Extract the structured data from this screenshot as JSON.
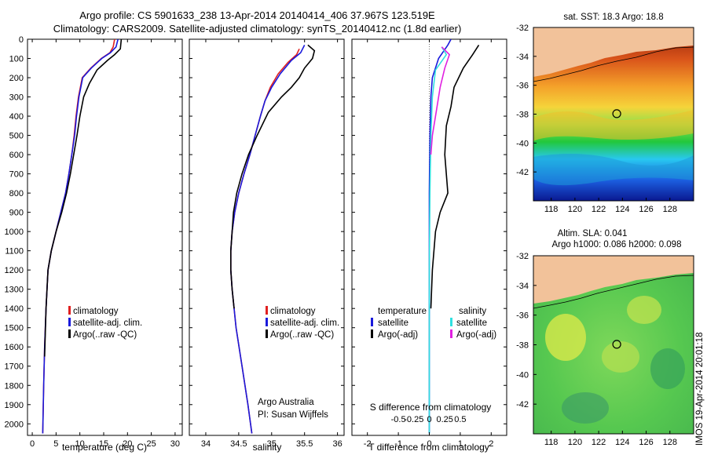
{
  "header": {
    "line1": "Argo profile: CS 5901633_238 13-Apr-2014 20140414_406 37.967S 123.519E",
    "line2": "Climatology: CARS2009. Satellite-adjusted climatology: synTS_20140412.nc (1.8d earlier)"
  },
  "colors": {
    "climatology": "#e02020",
    "satellite": "#1a1adc",
    "argo": "#000000",
    "sal_sat": "#30e0e0",
    "sal_argo": "#e020e0",
    "land": "#f2c29a"
  },
  "chart_data": [
    {
      "type": "line",
      "name": "temperature-profile",
      "xlabel": "temperature (deg C)",
      "ylabel": "",
      "xlim": [
        -1,
        31.5
      ],
      "ylim": [
        2060,
        0
      ],
      "xticks": [
        0,
        5,
        10,
        15,
        20,
        25,
        30
      ],
      "yticks": [
        0,
        100,
        200,
        300,
        400,
        500,
        600,
        700,
        800,
        900,
        1000,
        1100,
        1200,
        1300,
        1400,
        1500,
        1600,
        1700,
        1800,
        1900,
        2000
      ],
      "legend": [
        "climatology",
        "satellite-adj. clim.",
        "Argo(..raw -QC)"
      ],
      "series": [
        {
          "name": "climatology",
          "x": [
            17.3,
            17.0,
            16.3,
            14.5,
            12.3,
            10.5,
            9.7,
            9.2,
            8.8,
            8.3,
            7.7,
            7.0,
            6.0,
            5.0,
            4.0,
            3.3,
            2.9,
            2.6,
            2.4,
            2.2
          ],
          "y": [
            0,
            40,
            70,
            100,
            150,
            200,
            300,
            400,
            500,
            600,
            700,
            800,
            900,
            1000,
            1100,
            1200,
            1400,
            1600,
            1800,
            2050
          ]
        },
        {
          "name": "satellite-adj. clim.",
          "x": [
            18.0,
            17.6,
            16.4,
            14.6,
            12.4,
            10.6,
            9.8,
            9.3,
            8.9,
            8.3,
            7.7,
            7.0,
            6.0,
            5.0,
            4.0,
            3.3,
            2.9,
            2.6,
            2.4,
            2.2
          ],
          "y": [
            0,
            40,
            70,
            100,
            150,
            200,
            300,
            400,
            500,
            600,
            700,
            800,
            900,
            1000,
            1100,
            1200,
            1400,
            1600,
            1800,
            2050
          ]
        },
        {
          "name": "Argo(..raw -QC)",
          "x": [
            18.7,
            18.5,
            17.3,
            15.8,
            13.6,
            12.0,
            10.8,
            10.0,
            9.4,
            8.7,
            8.0,
            7.2,
            6.2,
            5.0,
            4.0,
            3.3,
            2.9,
            2.6
          ],
          "y": [
            0,
            50,
            80,
            110,
            160,
            230,
            300,
            400,
            500,
            600,
            700,
            800,
            900,
            1000,
            1100,
            1200,
            1400,
            1650
          ]
        }
      ]
    },
    {
      "type": "line",
      "name": "salinity-profile",
      "xlabel": "salinity",
      "xlim": [
        33.75,
        36.1
      ],
      "ylim": [
        2060,
        0
      ],
      "xticks": [
        34,
        34.5,
        35,
        35.5,
        36
      ],
      "legend": [
        "climatology",
        "satellite-adj. clim.",
        "Argo(..raw -QC)"
      ],
      "annotations": [
        "Argo Australia",
        "PI: Susan Wijffels"
      ],
      "series": [
        {
          "name": "climatology",
          "x": [
            35.42,
            35.38,
            35.25,
            35.1,
            34.98,
            34.9,
            34.83,
            34.75,
            34.67,
            34.58,
            34.5,
            34.44,
            34.4,
            34.38,
            34.38,
            34.4,
            34.46,
            34.55,
            34.64,
            34.7
          ],
          "y": [
            50,
            80,
            120,
            180,
            250,
            320,
            400,
            500,
            600,
            700,
            800,
            900,
            1000,
            1100,
            1200,
            1300,
            1500,
            1700,
            1900,
            2050
          ]
        },
        {
          "name": "satellite-adj. clim.",
          "x": [
            35.5,
            35.44,
            35.3,
            35.13,
            35.0,
            34.9,
            34.83,
            34.75,
            34.67,
            34.58,
            34.5,
            34.44,
            34.4,
            34.38,
            34.38,
            34.4,
            34.46,
            34.55,
            34.64,
            34.7
          ],
          "y": [
            30,
            70,
            110,
            180,
            250,
            320,
            400,
            500,
            600,
            700,
            800,
            900,
            1000,
            1100,
            1200,
            1300,
            1500,
            1700,
            1900,
            2050
          ]
        },
        {
          "name": "Argo(..raw -QC)",
          "x": [
            35.55,
            35.65,
            35.62,
            35.5,
            35.42,
            35.3,
            35.15,
            34.95,
            34.78,
            34.65,
            34.55,
            34.47,
            34.42,
            34.4,
            34.38,
            34.38,
            34.4,
            34.43
          ],
          "y": [
            30,
            60,
            100,
            150,
            200,
            250,
            300,
            380,
            500,
            600,
            700,
            800,
            900,
            1000,
            1100,
            1200,
            1300,
            1400
          ]
        }
      ]
    },
    {
      "type": "line",
      "name": "difference-profile",
      "xlabel": "T difference from climatology",
      "x2label": "S difference from climatology",
      "xlim": [
        -2.5,
        2.5
      ],
      "ylim": [
        2060,
        0
      ],
      "xticks": [
        -2,
        -1,
        0,
        1,
        2
      ],
      "x2ticks": [
        "-0.5",
        "-0.25",
        "0",
        "0.25",
        "0.5"
      ],
      "legend_headers": [
        "temperature",
        "salinity"
      ],
      "legend": [
        "satellite",
        "Argo(-adj)",
        "satellite",
        "Argo(-adj)"
      ],
      "series": [
        {
          "name": "temperature satellite",
          "x": [
            0.7,
            0.6,
            0.3,
            0.1,
            0.05,
            0.02,
            0.0,
            0.0,
            0.0,
            0.0
          ],
          "y": [
            0,
            30,
            100,
            200,
            300,
            500,
            800,
            1200,
            1600,
            2050
          ]
        },
        {
          "name": "temperature Argo(-adj)",
          "x": [
            1.6,
            1.4,
            1.1,
            0.8,
            0.7,
            0.55,
            0.5,
            0.6,
            0.35,
            0.2,
            0.1,
            0.05
          ],
          "y": [
            30,
            80,
            150,
            250,
            350,
            450,
            600,
            800,
            900,
            1000,
            1200,
            1400
          ]
        },
        {
          "name": "salinity satellite",
          "x": [
            0.4,
            0.55,
            0.2,
            0.1,
            0.05,
            0.02,
            0.0,
            0.0
          ],
          "y": [
            40,
            80,
            160,
            300,
            500,
            800,
            1200,
            2050
          ]
        },
        {
          "name": "salinity Argo(-adj)",
          "x": [
            0.4,
            0.65,
            0.5,
            0.35,
            0.2,
            0.1,
            0.05
          ],
          "y": [
            40,
            80,
            150,
            250,
            400,
            500,
            600
          ]
        }
      ]
    },
    {
      "type": "heatmap",
      "name": "sst-map",
      "title": "sat. SST: 18.3  Argo: 18.8",
      "xlim": [
        116.5,
        130
      ],
      "ylim": [
        -32,
        -44
      ],
      "xticks": [
        118,
        120,
        122,
        124,
        126,
        128
      ],
      "yticks": [
        -32,
        -34,
        -36,
        -38,
        -40,
        -42
      ],
      "marker": {
        "lon": 123.519,
        "lat": -37.967
      }
    },
    {
      "type": "heatmap",
      "name": "sla-map",
      "title": "Altim. SLA: 0.041",
      "subtitle": "Argo h1000: 0.086  h2000: 0.098",
      "xlim": [
        116.5,
        130
      ],
      "ylim": [
        -32,
        -44
      ],
      "xticks": [
        118,
        120,
        122,
        124,
        126,
        128
      ],
      "yticks": [
        -32,
        -34,
        -36,
        -38,
        -40,
        -42
      ],
      "marker": {
        "lon": 123.519,
        "lat": -37.967
      }
    }
  ],
  "footer": {
    "credit": "IMOS 19-Apr-2014 20:01:18"
  }
}
